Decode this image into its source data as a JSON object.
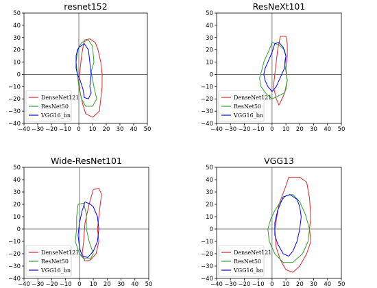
{
  "chart_data": [
    {
      "type": "line",
      "title": "resnet152",
      "xlim": [
        -40,
        50
      ],
      "ylim": [
        -40,
        50
      ],
      "xticks": [
        -40,
        -30,
        -20,
        -10,
        0,
        10,
        20,
        30,
        40,
        50
      ],
      "yticks": [
        -40,
        -30,
        -20,
        -10,
        0,
        10,
        20,
        30,
        40,
        50
      ],
      "reference_lines": {
        "x": 0,
        "y": 0
      },
      "legend_placement": "lower-left",
      "series": [
        {
          "name": "DenseNet121",
          "color": "#d62728",
          "x": [
            4,
            8,
            12,
            14,
            16,
            17,
            17,
            16,
            15,
            10,
            5,
            3,
            1,
            0,
            1,
            2,
            3,
            4
          ],
          "y": [
            28,
            29,
            26,
            20,
            10,
            0,
            -10,
            -20,
            -30,
            -35,
            -32,
            -25,
            -15,
            -5,
            5,
            15,
            22,
            28
          ]
        },
        {
          "name": "ResNet50",
          "color": "#2ca02c",
          "x": [
            2,
            7,
            10,
            11,
            9,
            11,
            13,
            10,
            5,
            2,
            0,
            -1,
            -2,
            -1,
            0,
            2
          ],
          "y": [
            26,
            28,
            23,
            10,
            2,
            -10,
            -20,
            -26,
            -26,
            -20,
            -10,
            0,
            10,
            18,
            22,
            26
          ]
        },
        {
          "name": "VGG16_bn",
          "color": "#0000ff",
          "x": [
            0,
            4,
            7,
            8,
            9,
            8,
            9,
            7,
            4,
            3,
            1,
            -1,
            -2,
            -2,
            -1,
            0
          ],
          "y": [
            22,
            25,
            20,
            10,
            0,
            -10,
            -15,
            -20,
            -19,
            -12,
            -5,
            0,
            5,
            15,
            20,
            22
          ]
        }
      ]
    },
    {
      "type": "line",
      "title": "ResNeXt101",
      "xlim": [
        -40,
        50
      ],
      "ylim": [
        -40,
        50
      ],
      "xticks": [
        -40,
        -30,
        -20,
        -10,
        0,
        10,
        20,
        30,
        40,
        50
      ],
      "yticks": [
        -40,
        -30,
        -20,
        -10,
        0,
        10,
        20,
        30,
        40,
        50
      ],
      "reference_lines": {
        "x": 0,
        "y": 0
      },
      "legend_placement": "lower-left",
      "series": [
        {
          "name": "DenseNet121",
          "color": "#d62728",
          "x": [
            6,
            10,
            11,
            11,
            10,
            11,
            10,
            8,
            5,
            3,
            1,
            2,
            3,
            4,
            6
          ],
          "y": [
            31,
            31,
            25,
            15,
            5,
            -5,
            -12,
            -18,
            -25,
            -20,
            -10,
            0,
            10,
            20,
            31
          ]
        },
        {
          "name": "ResNet50",
          "color": "#2ca02c",
          "x": [
            0,
            5,
            9,
            10,
            9,
            11,
            9,
            4,
            0,
            -4,
            -8,
            -9,
            -7,
            -6,
            -4,
            -2,
            0
          ],
          "y": [
            26,
            24,
            20,
            15,
            10,
            -5,
            -15,
            -18,
            -20,
            -16,
            -10,
            -3,
            5,
            10,
            15,
            20,
            26
          ]
        },
        {
          "name": "VGG16_bn",
          "color": "#0000ff",
          "x": [
            2,
            5,
            8,
            10,
            9,
            7,
            5,
            3,
            0,
            -3,
            -5,
            -6,
            -5,
            -3,
            0,
            2
          ],
          "y": [
            25,
            26,
            22,
            15,
            5,
            0,
            -5,
            -10,
            -14,
            -10,
            -5,
            0,
            5,
            10,
            18,
            25
          ]
        }
      ]
    },
    {
      "type": "line",
      "title": "Wide-ResNet101",
      "xlim": [
        -40,
        50
      ],
      "ylim": [
        -40,
        50
      ],
      "xticks": [
        -40,
        -30,
        -20,
        -10,
        0,
        10,
        20,
        30,
        40,
        50
      ],
      "yticks": [
        -40,
        -30,
        -20,
        -10,
        0,
        10,
        20,
        30,
        40,
        50
      ],
      "reference_lines": {
        "x": 0,
        "y": 0
      },
      "legend_placement": "lower-left",
      "series": [
        {
          "name": "DenseNet121",
          "color": "#d62728",
          "x": [
            10,
            14,
            16,
            15,
            14,
            13,
            14,
            12,
            8,
            4,
            2,
            3,
            4,
            7,
            10
          ],
          "y": [
            32,
            33,
            28,
            20,
            10,
            0,
            -10,
            -20,
            -25,
            -26,
            -20,
            -10,
            5,
            20,
            32
          ]
        },
        {
          "name": "ResNet50",
          "color": "#2ca02c",
          "x": [
            -1,
            3,
            5,
            5,
            7,
            10,
            8,
            3,
            0,
            -3,
            -2,
            -2,
            -1
          ],
          "y": [
            20,
            21,
            12,
            0,
            -10,
            -20,
            -24,
            -24,
            -20,
            -10,
            0,
            10,
            20
          ]
        },
        {
          "name": "VGG16_bn",
          "color": "#0000ff",
          "x": [
            4,
            8,
            10,
            13,
            14,
            13,
            10,
            6,
            2,
            0,
            -1,
            0,
            2,
            4
          ],
          "y": [
            22,
            20,
            18,
            10,
            0,
            -10,
            -18,
            -23,
            -22,
            -15,
            -5,
            5,
            15,
            22
          ]
        }
      ]
    },
    {
      "type": "line",
      "title": "VGG13",
      "xlim": [
        -40,
        50
      ],
      "ylim": [
        -40,
        50
      ],
      "xticks": [
        -40,
        -30,
        -20,
        -10,
        0,
        10,
        20,
        30,
        40,
        50
      ],
      "yticks": [
        -40,
        -30,
        -20,
        -10,
        0,
        10,
        20,
        30,
        40,
        50
      ],
      "reference_lines": {
        "x": 0,
        "y": 0
      },
      "legend_placement": "lower-left",
      "series": [
        {
          "name": "DenseNet121",
          "color": "#d62728",
          "x": [
            12,
            20,
            25,
            27,
            28,
            27,
            28,
            25,
            20,
            15,
            10,
            6,
            3,
            2,
            5,
            10,
            12
          ],
          "y": [
            42,
            42,
            38,
            25,
            10,
            0,
            -10,
            -20,
            -30,
            -35,
            -33,
            -25,
            -15,
            0,
            20,
            35,
            42
          ]
        },
        {
          "name": "ResNet50",
          "color": "#2ca02c",
          "x": [
            10,
            15,
            20,
            24,
            27,
            26,
            22,
            15,
            8,
            2,
            -2,
            -3,
            -1,
            2,
            6,
            10
          ],
          "y": [
            27,
            28,
            22,
            12,
            0,
            -10,
            -20,
            -27,
            -27,
            -20,
            -10,
            0,
            8,
            15,
            22,
            27
          ]
        },
        {
          "name": "VGG16_bn",
          "color": "#0000ff",
          "x": [
            8,
            13,
            18,
            20,
            21,
            20,
            18,
            15,
            12,
            8,
            4,
            2,
            2,
            4,
            8
          ],
          "y": [
            26,
            28,
            24,
            18,
            10,
            0,
            -10,
            -18,
            -22,
            -20,
            -12,
            -5,
            5,
            15,
            26
          ]
        }
      ]
    }
  ]
}
